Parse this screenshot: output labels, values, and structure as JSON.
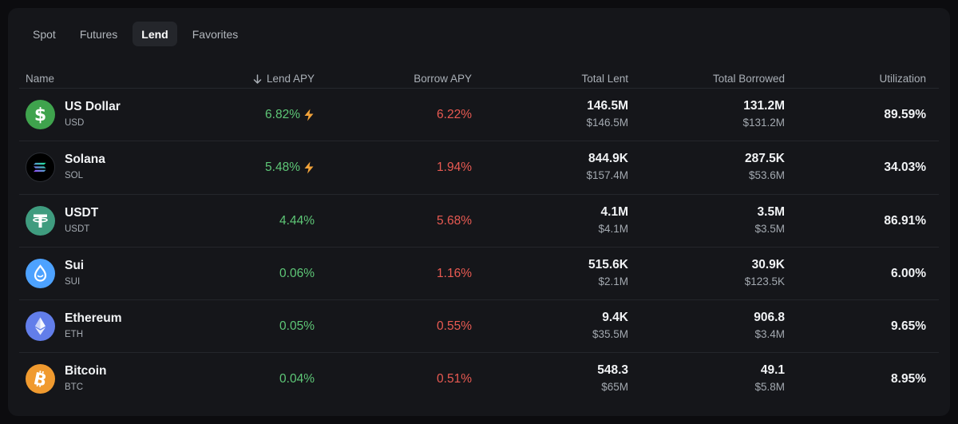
{
  "tabs": [
    {
      "label": "Spot",
      "active": false
    },
    {
      "label": "Futures",
      "active": false
    },
    {
      "label": "Lend",
      "active": true
    },
    {
      "label": "Favorites",
      "active": false
    }
  ],
  "columns": {
    "name": "Name",
    "lend_apy": "Lend APY",
    "borrow_apy": "Borrow APY",
    "total_lent": "Total Lent",
    "total_borrowed": "Total Borrowed",
    "utilization": "Utilization"
  },
  "sort_icon": "arrow-down-icon",
  "rows": [
    {
      "name": "US Dollar",
      "symbol": "USD",
      "icon": "dollar-icon",
      "icon_color": "#3fa34d",
      "lend_apy": "6.82%",
      "boosted": true,
      "borrow_apy": "6.22%",
      "lent": "146.5M",
      "lent_usd": "$146.5M",
      "borrowed": "131.2M",
      "borrowed_usd": "$131.2M",
      "utilization": "89.59%"
    },
    {
      "name": "Solana",
      "symbol": "SOL",
      "icon": "solana-icon",
      "icon_color": "#000000",
      "lend_apy": "5.48%",
      "boosted": true,
      "borrow_apy": "1.94%",
      "lent": "844.9K",
      "lent_usd": "$157.4M",
      "borrowed": "287.5K",
      "borrowed_usd": "$53.6M",
      "utilization": "34.03%"
    },
    {
      "name": "USDT",
      "symbol": "USDT",
      "icon": "tether-icon",
      "icon_color": "#3f9c7f",
      "lend_apy": "4.44%",
      "boosted": false,
      "borrow_apy": "5.68%",
      "lent": "4.1M",
      "lent_usd": "$4.1M",
      "borrowed": "3.5M",
      "borrowed_usd": "$3.5M",
      "utilization": "86.91%"
    },
    {
      "name": "Sui",
      "symbol": "SUI",
      "icon": "sui-drop-icon",
      "icon_color": "#4da2ff",
      "lend_apy": "0.06%",
      "boosted": false,
      "borrow_apy": "1.16%",
      "lent": "515.6K",
      "lent_usd": "$2.1M",
      "borrowed": "30.9K",
      "borrowed_usd": "$123.5K",
      "utilization": "6.00%"
    },
    {
      "name": "Ethereum",
      "symbol": "ETH",
      "icon": "ethereum-icon",
      "icon_color": "#627eea",
      "lend_apy": "0.05%",
      "boosted": false,
      "borrow_apy": "0.55%",
      "lent": "9.4K",
      "lent_usd": "$35.5M",
      "borrowed": "906.8",
      "borrowed_usd": "$3.4M",
      "utilization": "9.65%"
    },
    {
      "name": "Bitcoin",
      "symbol": "BTC",
      "icon": "bitcoin-icon",
      "icon_color": "#f09a2f",
      "lend_apy": "0.04%",
      "boosted": false,
      "borrow_apy": "0.51%",
      "lent": "548.3",
      "lent_usd": "$65M",
      "borrowed": "49.1",
      "borrowed_usd": "$5.8M",
      "utilization": "8.95%"
    }
  ]
}
